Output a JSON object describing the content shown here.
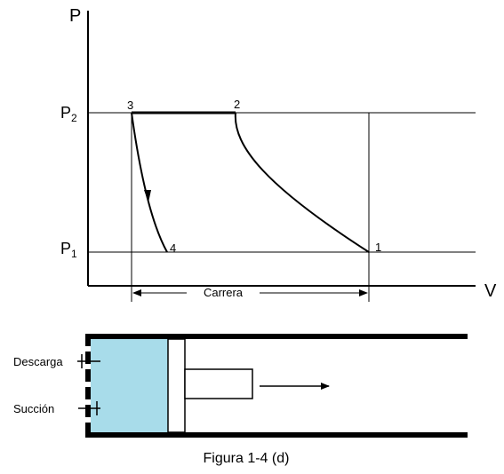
{
  "pv_diagram": {
    "y_axis_label": "P",
    "x_axis_label": "V",
    "p2_label": "P",
    "p2_sub": "2",
    "p1_label": "P",
    "p1_sub": "1",
    "points": {
      "p3": "3",
      "p2": "2",
      "p4": "4",
      "p1": "1"
    },
    "stroke_label": "Carrera"
  },
  "cylinder": {
    "discharge_label": "Descarga",
    "suction_label": "Succión",
    "fluid_color": "#a8dcea"
  },
  "caption": "Figura 1-4 (d)"
}
